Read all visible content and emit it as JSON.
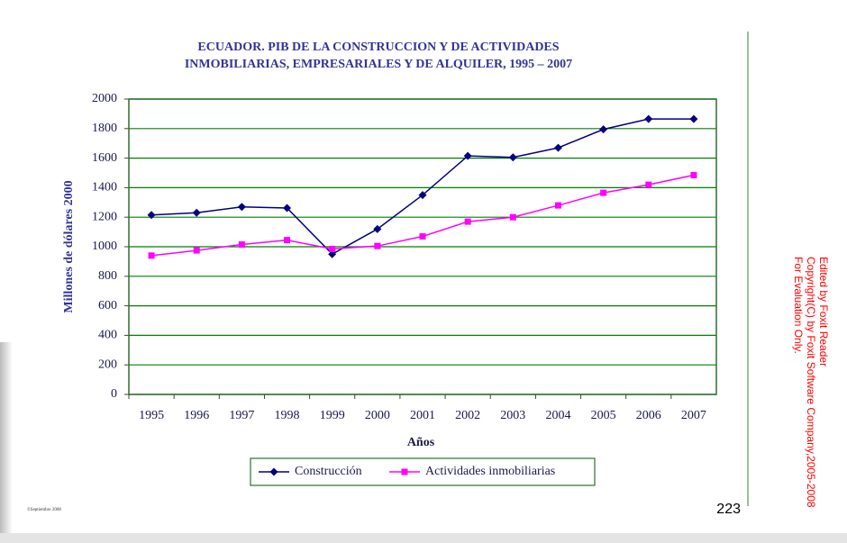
{
  "chart_data": {
    "type": "line",
    "title": [
      "ECUADOR. PIB DE LA CONSTRUCCION Y DE ACTIVIDADES",
      "INMOBILIARIAS, EMPRESARIALES Y DE ALQUILER, 1995 – 2007"
    ],
    "x_label": "Años",
    "y_label": "Millones de dólares 2000",
    "categories": [
      "1995",
      "1996",
      "1997",
      "1998",
      "1999",
      "2000",
      "2001",
      "2002",
      "2003",
      "2004",
      "2005",
      "2006",
      "2007"
    ],
    "series": [
      {
        "name": "Construcción",
        "color": "#000080",
        "marker": "diamond",
        "values": [
          1215,
          1230,
          1270,
          1262,
          950,
          1120,
          1350,
          1615,
          1605,
          1670,
          1795,
          1865,
          1865
        ]
      },
      {
        "name": "Actividades inmobiliarias",
        "color": "#ff00ff",
        "marker": "square",
        "values": [
          940,
          975,
          1015,
          1045,
          985,
          1005,
          1070,
          1170,
          1200,
          1280,
          1365,
          1420,
          1485
        ]
      }
    ],
    "ylim": [
      0,
      2000
    ],
    "yticks": [
      0,
      200,
      400,
      600,
      800,
      1000,
      1200,
      1400,
      1600,
      1800,
      2000
    ],
    "grid": true,
    "legend": "bottom"
  },
  "page": {
    "number": "223",
    "footer": "©Septiembre 2008",
    "watermark": [
      "Edited by Foxit Reader",
      "Copyright(C) by Foxit Software Company,2005-2008",
      "For Evaluation Only."
    ]
  }
}
